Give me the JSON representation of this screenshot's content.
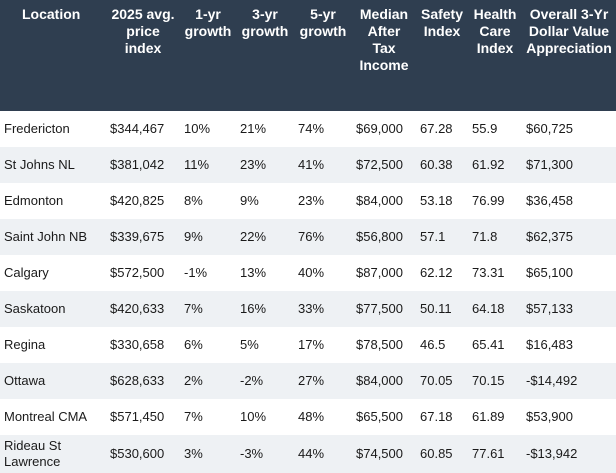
{
  "table": {
    "headers": [
      "Location",
      "2025 avg.\nprice\nindex",
      "1-yr\ngrowth",
      "3-yr\ngrowth",
      "5-yr\ngrowth",
      "Median\nAfter\nTax\nIncome",
      "Safety\nIndex",
      "Health\nCare\nIndex",
      "Overall 3-Yr\nDollar Value\nAppreciation"
    ],
    "rows": [
      [
        "Fredericton",
        "$344,467",
        "10%",
        "21%",
        "74%",
        "$69,000",
        "67.28",
        "55.9",
        "$60,725"
      ],
      [
        "St Johns NL",
        "$381,042",
        "11%",
        "23%",
        "41%",
        "$72,500",
        "60.38",
        "61.92",
        "$71,300"
      ],
      [
        "Edmonton",
        "$420,825",
        "8%",
        "9%",
        "23%",
        "$84,000",
        "53.18",
        "76.99",
        "$36,458"
      ],
      [
        "Saint John NB",
        "$339,675",
        "9%",
        "22%",
        "76%",
        "$56,800",
        "57.1",
        "71.8",
        "$62,375"
      ],
      [
        "Calgary",
        "$572,500",
        "-1%",
        "13%",
        "40%",
        "$87,000",
        "62.12",
        "73.31",
        "$65,100"
      ],
      [
        "Saskatoon",
        "$420,633",
        "7%",
        "16%",
        "33%",
        "$77,500",
        "50.11",
        "64.18",
        "$57,133"
      ],
      [
        "Regina",
        "$330,658",
        "6%",
        "5%",
        "17%",
        "$78,500",
        "46.5",
        "65.41",
        "$16,483"
      ],
      [
        "Ottawa",
        "$628,633",
        "2%",
        "-2%",
        "27%",
        "$84,000",
        "70.05",
        "70.15",
        "-$14,492"
      ],
      [
        "Montreal CMA",
        "$571,450",
        "7%",
        "10%",
        "48%",
        "$65,500",
        "67.18",
        "61.89",
        "$53,900"
      ],
      [
        "Rideau St Lawrence",
        "$530,600",
        "3%",
        "-3%",
        "44%",
        "$74,500",
        "60.85",
        "77.61",
        "-$13,942"
      ]
    ]
  }
}
